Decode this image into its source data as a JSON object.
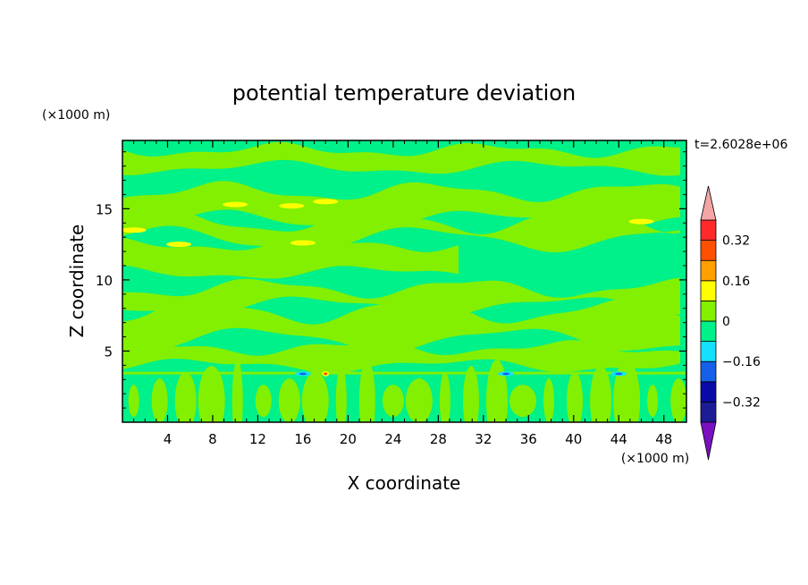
{
  "chart_data": {
    "type": "heatmap",
    "title": "potential temperature deviation",
    "xlabel": "X coordinate",
    "ylabel": "Z coordinate",
    "x_unit": "(×1000 m)",
    "y_unit": "(×1000 m)",
    "time_label": "t=2.6028e+06",
    "xlim": [
      0,
      50
    ],
    "ylim": [
      0,
      19.8
    ],
    "x_ticks": [
      4,
      8,
      12,
      16,
      20,
      24,
      28,
      32,
      36,
      40,
      44,
      48
    ],
    "y_ticks": [
      5,
      10,
      15
    ],
    "colorbar": {
      "levels": [
        -0.4,
        -0.32,
        -0.24,
        -0.16,
        -0.08,
        0,
        0.08,
        0.16,
        0.24,
        0.32,
        0.4
      ],
      "labels": [
        -0.32,
        -0.16,
        0,
        0.16,
        0.32
      ],
      "colors": [
        "#1c1c94",
        "#0a0aa8",
        "#1560e8",
        "#16e0ff",
        "#00f08a",
        "#82f000",
        "#ffff00",
        "#ffa000",
        "#ff5000",
        "#ff2a2a"
      ],
      "under_color": "#7a10c0",
      "over_color": "#f4a6a6"
    },
    "field_summary": {
      "background": "#00f08a",
      "positive_layers": [
        {
          "z_center": 18.5,
          "x_from": 0,
          "x_to": 50
        },
        {
          "z_center": 15.2,
          "x_from": 0,
          "x_to": 50
        },
        {
          "z_center": 13.5,
          "x_from": 0,
          "x_to": 50
        },
        {
          "z_center": 11.5,
          "x_from": 0,
          "x_to": 30
        },
        {
          "z_center": 8.8,
          "x_from": 0,
          "x_to": 50
        },
        {
          "z_center": 6.8,
          "x_from": 0,
          "x_to": 50
        },
        {
          "z_center": 4.6,
          "x_from": 0,
          "x_to": 50
        }
      ],
      "yellow_spots": [
        {
          "x": 10,
          "z": 15.3
        },
        {
          "x": 15,
          "z": 15.2
        },
        {
          "x": 18,
          "z": 15.5
        },
        {
          "x": 1,
          "z": 13.5
        },
        {
          "x": 5,
          "z": 12.5
        },
        {
          "x": 16,
          "z": 12.6
        },
        {
          "x": 46,
          "z": 14.1
        }
      ],
      "blue_spots": [
        {
          "x": 16,
          "z": 3.4
        },
        {
          "x": 34,
          "z": 3.4
        },
        {
          "x": 44,
          "z": 3.4
        }
      ],
      "red_spots": [
        {
          "x": 18,
          "z": 3.4
        }
      ]
    }
  }
}
